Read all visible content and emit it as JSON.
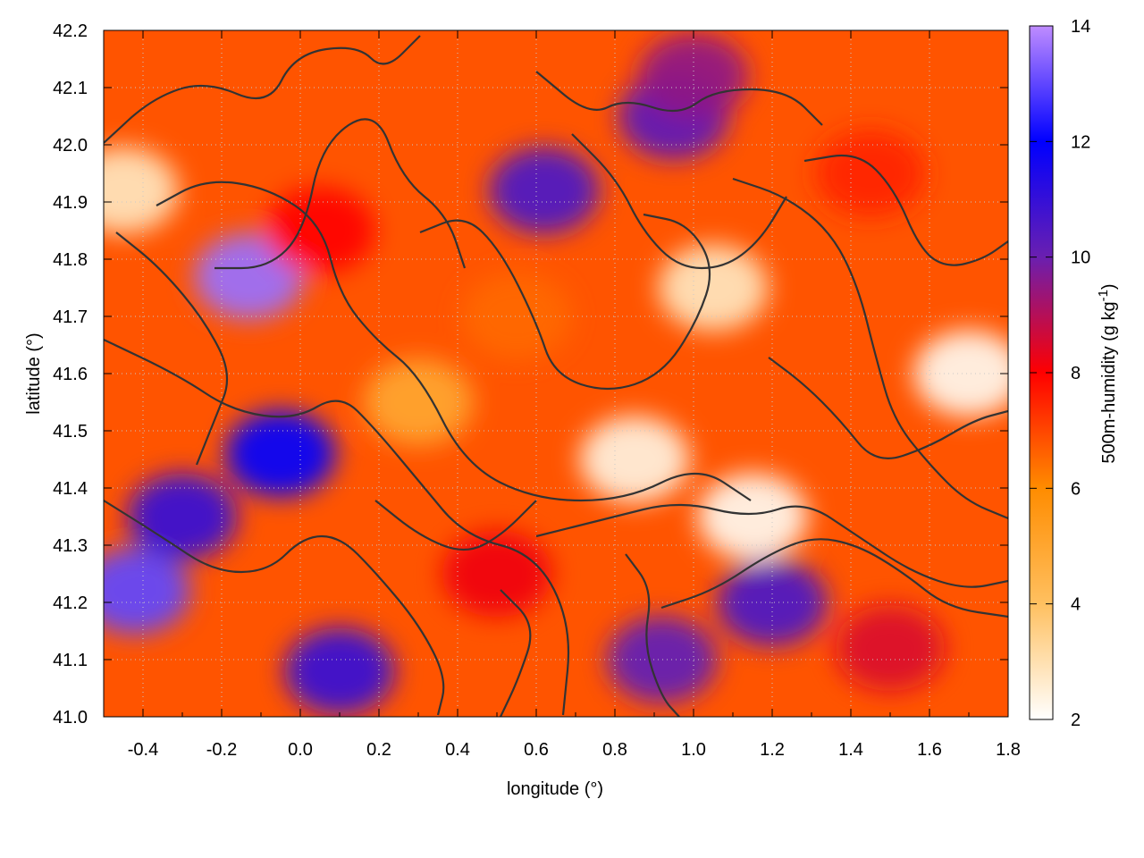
{
  "chart_data": {
    "type": "heatmap",
    "title": "",
    "xlabel": "longitude (°)",
    "ylabel": "latitude (°)",
    "colorbar_label": "500m-humidity (g kg",
    "colorbar_unit_exponent": "-1",
    "colorbar_label_close": ")",
    "xlim": [
      -0.5,
      1.8
    ],
    "ylim": [
      41.0,
      42.2
    ],
    "clim": [
      2,
      14
    ],
    "x_ticks": [
      "-0.4",
      "-0.2",
      "0.0",
      "0.2",
      "0.4",
      "0.6",
      "0.8",
      "1.0",
      "1.2",
      "1.4",
      "1.6",
      "1.8"
    ],
    "x_tick_values": [
      -0.4,
      -0.2,
      0.0,
      0.2,
      0.4,
      0.6,
      0.8,
      1.0,
      1.2,
      1.4,
      1.6,
      1.8
    ],
    "y_ticks": [
      "41.0",
      "41.1",
      "41.2",
      "41.3",
      "41.4",
      "41.5",
      "41.6",
      "41.7",
      "41.8",
      "41.9",
      "42.0",
      "42.1",
      "42.2"
    ],
    "y_tick_values": [
      41.0,
      41.1,
      41.2,
      41.3,
      41.4,
      41.5,
      41.6,
      41.7,
      41.8,
      41.9,
      42.0,
      42.1,
      42.2
    ],
    "colorbar_ticks": [
      "2",
      "4",
      "6",
      "8",
      "10",
      "12",
      "14"
    ],
    "colorbar_tick_values": [
      2,
      4,
      6,
      8,
      10,
      12,
      14
    ],
    "colormap": [
      {
        "value": 2,
        "color": "#ffffff"
      },
      {
        "value": 4,
        "color": "#ffc060"
      },
      {
        "value": 6,
        "color": "#ff8c00"
      },
      {
        "value": 8,
        "color": "#ff0000"
      },
      {
        "value": 10,
        "color": "#6a1fb0"
      },
      {
        "value": 12,
        "color": "#0000ff"
      },
      {
        "value": 14,
        "color": "#bf8cff"
      }
    ],
    "grid": true,
    "contours": true,
    "contour_color": "#333333",
    "humidity_features": [
      {
        "lon": -0.13,
        "lat": 41.77,
        "value": 13.6
      },
      {
        "lon": -0.42,
        "lat": 41.22,
        "value": 13.0
      },
      {
        "lon": -0.05,
        "lat": 41.46,
        "value": 12.0
      },
      {
        "lon": 0.1,
        "lat": 41.08,
        "value": 11.0
      },
      {
        "lon": -0.3,
        "lat": 41.35,
        "value": 11.0
      },
      {
        "lon": 1.2,
        "lat": 41.2,
        "value": 10.6
      },
      {
        "lon": 0.92,
        "lat": 41.1,
        "value": 10.2
      },
      {
        "lon": 0.62,
        "lat": 41.92,
        "value": 10.6
      },
      {
        "lon": 0.95,
        "lat": 42.05,
        "value": 10.3
      },
      {
        "lon": 1.0,
        "lat": 42.12,
        "value": 9.5
      },
      {
        "lon": 1.5,
        "lat": 41.12,
        "value": 8.5
      },
      {
        "lon": 0.5,
        "lat": 41.25,
        "value": 8.2
      },
      {
        "lon": 0.05,
        "lat": 41.85,
        "value": 8.0
      },
      {
        "lon": 0.55,
        "lat": 41.7,
        "value": 6.5
      },
      {
        "lon": 1.45,
        "lat": 41.95,
        "value": 7.5
      },
      {
        "lon": 0.85,
        "lat": 41.45,
        "value": 2.4
      },
      {
        "lon": 1.15,
        "lat": 41.35,
        "value": 2.2
      },
      {
        "lon": 1.7,
        "lat": 41.6,
        "value": 2.2
      },
      {
        "lon": 1.05,
        "lat": 41.75,
        "value": 2.8
      },
      {
        "lon": 0.3,
        "lat": 41.55,
        "value": 5.0
      },
      {
        "lon": -0.45,
        "lat": 41.92,
        "value": 2.8
      }
    ],
    "humidity_background": 6.8
  }
}
